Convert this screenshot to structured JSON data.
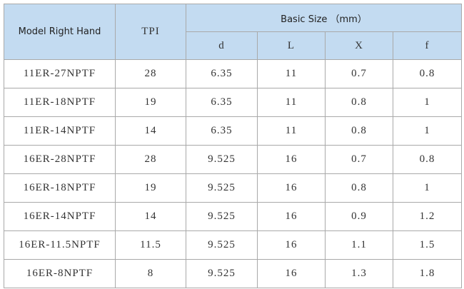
{
  "table": {
    "header": {
      "model": "Model Right Hand",
      "tpi": "TPI",
      "basic_size": "Basic Size （mm）",
      "sub": [
        "d",
        "L",
        "X",
        "f"
      ]
    },
    "rows": [
      [
        "11ER-27NPTF",
        "28",
        "6.35",
        "11",
        "0.7",
        "0.8"
      ],
      [
        "11ER-18NPTF",
        "19",
        "6.35",
        "11",
        "0.8",
        "1"
      ],
      [
        "11ER-14NPTF",
        "14",
        "6.35",
        "11",
        "0.8",
        "1"
      ],
      [
        "16ER-28NPTF",
        "28",
        "9.525",
        "16",
        "0.7",
        "0.8"
      ],
      [
        "16ER-18NPTF",
        "19",
        "9.525",
        "16",
        "0.8",
        "1"
      ],
      [
        "16ER-14NPTF",
        "14",
        "9.525",
        "16",
        "0.9",
        "1.2"
      ],
      [
        "16ER-11.5NPTF",
        "11.5",
        "9.525",
        "16",
        "1.1",
        "1.5"
      ],
      [
        "16ER-8NPTF",
        "8",
        "9.525",
        "16",
        "1.3",
        "1.8"
      ]
    ]
  }
}
